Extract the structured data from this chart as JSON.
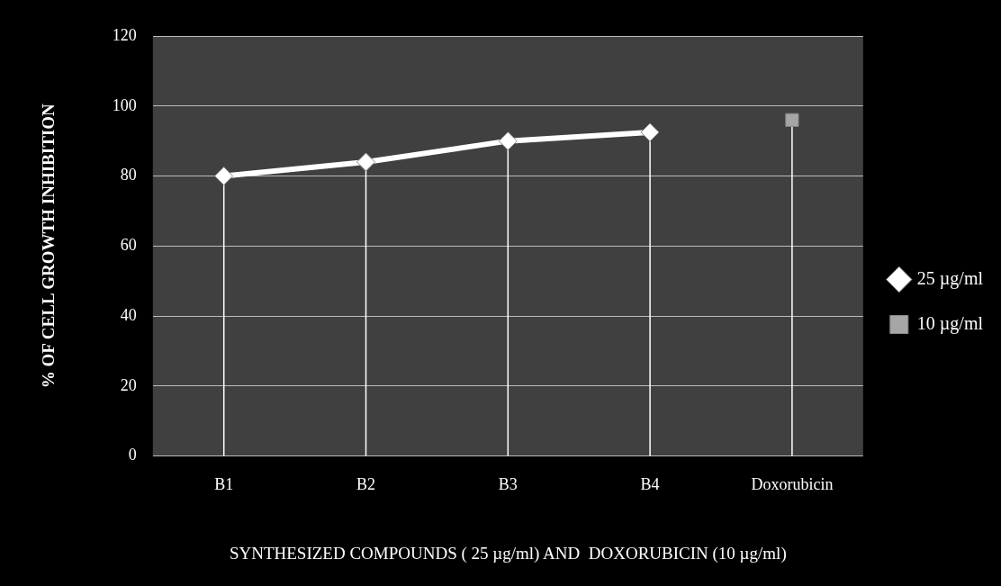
{
  "chart_data": {
    "type": "line",
    "xlabel": "SYNTHESIZED COMPOUNDS ( 25 µg/ml) AND  DOXORUBICIN (10 µg/ml)",
    "ylabel": "% OF CELL GROWTH INHIBITION",
    "categories": [
      "B1",
      "B2",
      "B3",
      "B4",
      "Doxorubicin"
    ],
    "series": [
      {
        "name": "25 µg/ml",
        "color": "#ffffff",
        "marker": "diamond",
        "values": [
          80,
          84,
          90,
          92.5,
          null
        ],
        "errors": [
          [
            0,
            80
          ],
          [
            0,
            84
          ],
          [
            0,
            90
          ],
          [
            0,
            92.5
          ],
          null
        ]
      },
      {
        "name": "10 µg/ml",
        "color": "#a6a6a6",
        "marker": "square",
        "values": [
          null,
          null,
          null,
          null,
          96
        ],
        "errors": [
          null,
          null,
          null,
          null,
          [
            0,
            96
          ]
        ]
      }
    ],
    "ylim": [
      0,
      120
    ],
    "yticks": [
      0,
      20,
      40,
      60,
      80,
      100,
      120
    ],
    "grid": "y",
    "legend": "right"
  }
}
